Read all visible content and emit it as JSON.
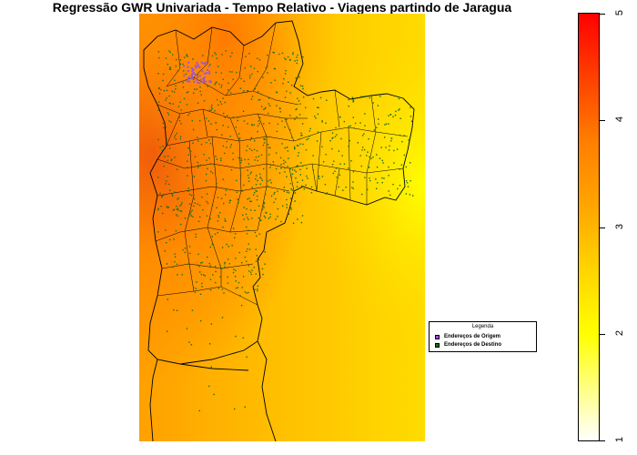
{
  "title": "Regressão GWR Univariada - Tempo Relativo - Viagens partindo de Jaragua",
  "legend": {
    "title": "Legenda",
    "items": [
      {
        "label": "Endereços de Origem",
        "color": "#9955dd"
      },
      {
        "label": "Endereços de Destino",
        "color": "#1a6e1a"
      }
    ]
  },
  "colorbar": {
    "min": 1,
    "max": 5,
    "ticks": [
      "1",
      "2",
      "3",
      "4",
      "5"
    ],
    "colors": [
      "#ffffff",
      "#ffff00",
      "#ffa500",
      "#ff4000",
      "#ff0000"
    ]
  }
}
